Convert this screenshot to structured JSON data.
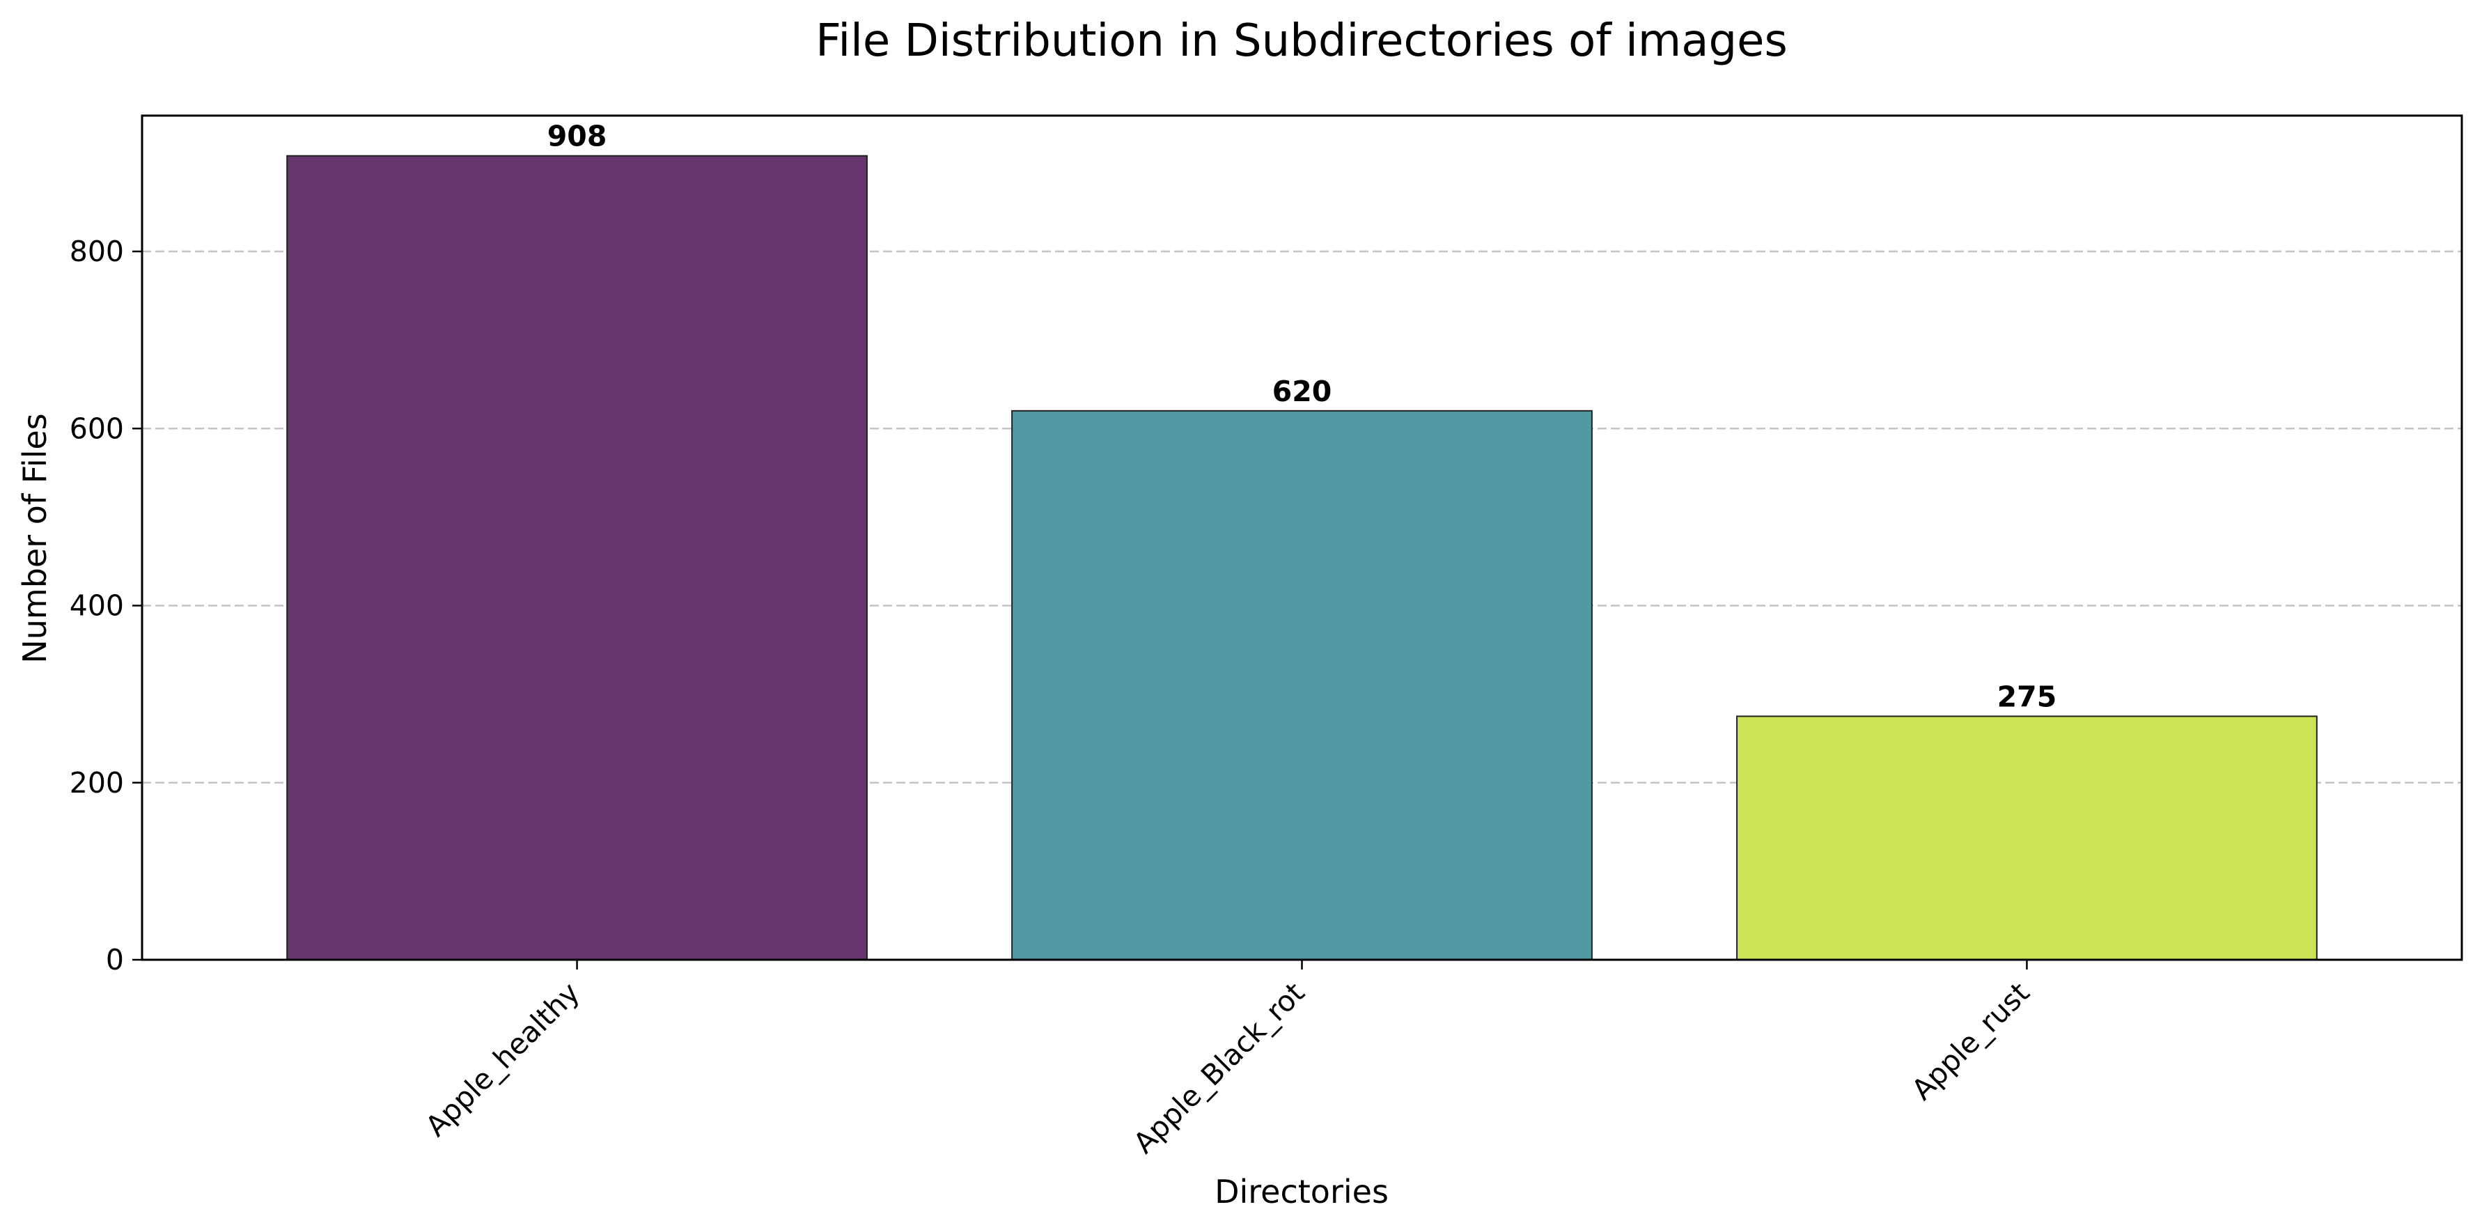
{
  "chart_data": {
    "type": "bar",
    "title": "File Distribution in Subdirectories of images",
    "xlabel": "Directories",
    "ylabel": "Number of Files",
    "categories": [
      "Apple_healthy",
      "Apple_Black_rot",
      "Apple_rust"
    ],
    "values": [
      908,
      620,
      275
    ],
    "data_labels": [
      "908",
      "620",
      "275"
    ],
    "colors": [
      "#68366f",
      "#529aa3",
      "#cce453"
    ],
    "ylim": [
      0,
      953.4
    ],
    "yticks": [
      0,
      200,
      400,
      600,
      800
    ],
    "ytick_labels": [
      "0",
      "200",
      "400",
      "600",
      "800"
    ],
    "grid": "y-axis dashed",
    "legend": "none"
  }
}
